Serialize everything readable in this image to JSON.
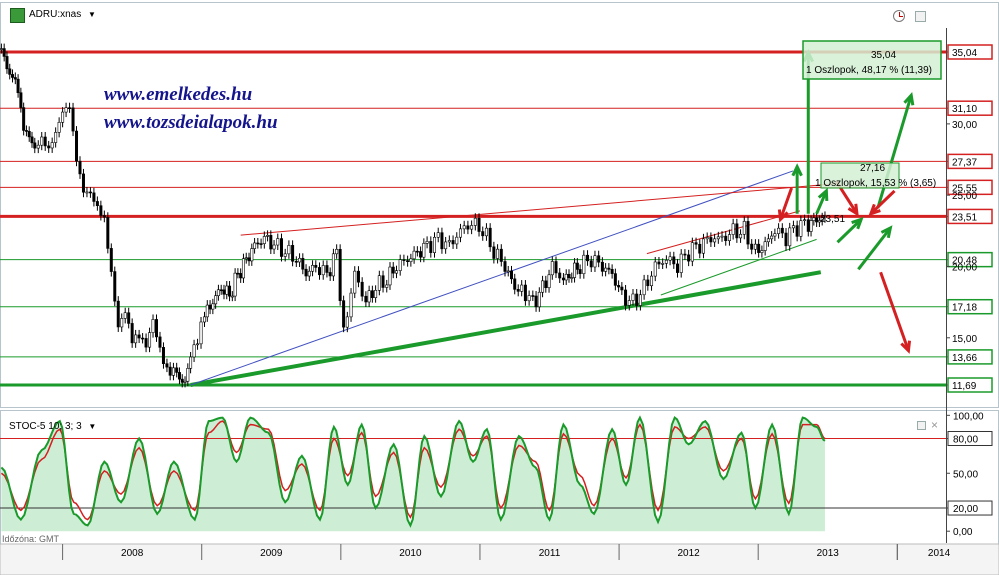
{
  "header": {
    "symbol_menu": "ADRU:xnas",
    "indicator_menu": "STOC-5 10; 3; 3",
    "timezone": "Időzóna: GMT"
  },
  "watermark": [
    "www.emelkedes.hu",
    "www.tozsdeialapok.hu"
  ],
  "colors": {
    "up": "#1a9a2a",
    "down": "#d42020",
    "price": "#000000",
    "blueline": "#4050c0",
    "stoch_fill": "#c8ecd0"
  },
  "chart_data": [
    {
      "type": "line",
      "title": "ADRU:xnas",
      "ylim": [
        11,
        37
      ],
      "xlim": [
        2007.55,
        2014.35
      ],
      "x_ticks": [
        "2008",
        "2009",
        "2010",
        "2011",
        "2012",
        "2013",
        "2014"
      ],
      "y_ticks": [
        "35,04",
        "31,10",
        "30,00",
        "27,37",
        "25,55",
        "25,00",
        "23,51",
        "20,48",
        "20,00",
        "17,18",
        "15,00",
        "13,66",
        "11,69"
      ],
      "series": [
        {
          "x": [
            2007.56,
            2007.62,
            2007.68,
            2007.72,
            2007.76,
            2007.8,
            2007.85,
            2007.9,
            2007.95,
            2008.0,
            2008.05,
            2008.1,
            2008.15,
            2008.2,
            2008.25,
            2008.3,
            2008.35,
            2008.4,
            2008.45,
            2008.5,
            2008.55,
            2008.6,
            2008.65,
            2008.7,
            2008.75,
            2008.82,
            2008.88,
            2008.92,
            2008.97,
            2009.02,
            2009.08,
            2009.14,
            2009.2,
            2009.26,
            2009.32,
            2009.38,
            2009.45,
            2009.52,
            2009.6,
            2009.68,
            2009.75,
            2009.82,
            2009.9,
            2009.97,
            2010.02,
            2010.1,
            2010.18,
            2010.25,
            2010.33,
            2010.4,
            2010.48,
            2010.55,
            2010.62,
            2010.7,
            2010.78,
            2010.86,
            2010.94,
            2011.02,
            2011.1,
            2011.18,
            2011.25,
            2011.3,
            2011.38,
            2011.45,
            2011.52,
            2011.6,
            2011.66,
            2011.72,
            2011.8,
            2011.88,
            2011.95,
            2012.02,
            2012.1,
            2012.18,
            2012.26,
            2012.34,
            2012.42,
            2012.5,
            2012.58,
            2012.66,
            2012.74,
            2012.82,
            2012.9,
            2012.98,
            2013.05,
            2013.12,
            2013.2,
            2013.28,
            2013.36,
            2013.42,
            2013.48
          ],
          "values": [
            35.0,
            33.5,
            32.5,
            30.0,
            29.5,
            28.5,
            29.0,
            28.0,
            29.0,
            30.5,
            31.0,
            27.5,
            25.5,
            25.5,
            24.5,
            23.5,
            19.5,
            15.5,
            16.5,
            14.5,
            15.0,
            14.5,
            16.5,
            14.5,
            13.0,
            12.5,
            11.8,
            13.5,
            14.5,
            16.5,
            17.5,
            18.5,
            18.0,
            19.5,
            20.5,
            21.5,
            22.0,
            21.5,
            21.0,
            20.5,
            19.5,
            20.0,
            19.5,
            21.0,
            15.5,
            19.5,
            17.5,
            18.5,
            19.0,
            20.0,
            20.5,
            21.0,
            21.5,
            22.0,
            21.5,
            22.5,
            23.0,
            22.5,
            21.0,
            20.0,
            18.5,
            18.5,
            17.5,
            18.5,
            20.0,
            19.0,
            19.5,
            20.0,
            20.5,
            20.0,
            19.5,
            18.0,
            17.5,
            18.5,
            20.0,
            20.5,
            20.0,
            21.0,
            21.5,
            22.0,
            22.0,
            22.5,
            22.5,
            21.0,
            21.5,
            22.5,
            22.0,
            22.8,
            23.0,
            23.3,
            23.51
          ]
        }
      ],
      "horizontal_levels": [
        {
          "value": 35.04,
          "color": "red",
          "weight": "thick"
        },
        {
          "value": 31.1,
          "color": "red",
          "weight": "thin"
        },
        {
          "value": 27.37,
          "color": "red",
          "weight": "thin"
        },
        {
          "value": 25.55,
          "color": "red",
          "weight": "thin"
        },
        {
          "value": 23.51,
          "color": "red",
          "weight": "thick"
        },
        {
          "value": 20.48,
          "color": "green",
          "weight": "thin"
        },
        {
          "value": 17.18,
          "color": "green",
          "weight": "thin"
        },
        {
          "value": 13.66,
          "color": "green",
          "weight": "thin"
        },
        {
          "value": 11.69,
          "color": "green",
          "weight": "thick"
        }
      ],
      "trendlines": [
        {
          "color": "green",
          "weight": "thick",
          "from": [
            2008.92,
            11.69
          ],
          "to": [
            2013.45,
            19.6
          ]
        },
        {
          "color": "green",
          "weight": "thin",
          "from": [
            2012.3,
            18.0
          ],
          "to": [
            2013.42,
            21.9
          ]
        },
        {
          "color": "blue",
          "weight": "thin",
          "from": [
            2008.92,
            11.69
          ],
          "to": [
            2013.25,
            26.7
          ]
        },
        {
          "color": "red",
          "weight": "thin",
          "from": [
            2009.28,
            22.2
          ],
          "to": [
            2013.55,
            25.8
          ]
        },
        {
          "color": "red",
          "weight": "thin",
          "from": [
            2012.2,
            20.9
          ],
          "to": [
            2013.3,
            23.9
          ]
        }
      ],
      "annotations": [
        {
          "label": "35,04",
          "text": "1 Oszlopok, 48,17 % (11,39)"
        },
        {
          "label": "27,16",
          "text": "1 Oszlopok, 15,53 % (3,65)"
        },
        {
          "label": "23,51"
        }
      ],
      "arrows": [
        {
          "color": "green",
          "from": [
            2013.36,
            23.7
          ],
          "to": [
            2013.36,
            35.0
          ]
        },
        {
          "color": "green",
          "from": [
            2013.28,
            23.7
          ],
          "to": [
            2013.28,
            27.0
          ]
        },
        {
          "color": "green",
          "from": [
            2013.42,
            23.7
          ],
          "to": [
            2013.49,
            25.3
          ]
        },
        {
          "color": "green",
          "from": [
            2013.57,
            21.7
          ],
          "to": [
            2013.74,
            23.3
          ]
        },
        {
          "color": "green",
          "from": [
            2013.86,
            24.1
          ],
          "to": [
            2014.1,
            32.0
          ]
        },
        {
          "color": "green",
          "from": [
            2013.72,
            19.8
          ],
          "to": [
            2013.95,
            22.7
          ]
        },
        {
          "color": "red",
          "from": [
            2013.24,
            25.5
          ],
          "to": [
            2013.16,
            23.3
          ]
        },
        {
          "color": "red",
          "from": [
            2013.56,
            26.0
          ],
          "to": [
            2013.71,
            23.7
          ]
        },
        {
          "color": "red",
          "from": [
            2013.98,
            25.3
          ],
          "to": [
            2013.81,
            23.7
          ]
        },
        {
          "color": "red",
          "from": [
            2013.88,
            19.6
          ],
          "to": [
            2014.08,
            14.1
          ]
        }
      ]
    },
    {
      "type": "line",
      "title": "STOC-5 10; 3; 3",
      "ylim": [
        -5,
        102
      ],
      "y_ticks": [
        "100,00",
        "80,00",
        "50,00",
        "20,00",
        "0,00"
      ],
      "levels": [
        80,
        20
      ],
      "series": [
        {
          "name": "%K",
          "x": [
            2007.56,
            2007.7,
            2007.85,
            2007.98,
            2008.08,
            2008.18,
            2008.3,
            2008.42,
            2008.55,
            2008.68,
            2008.8,
            2008.95,
            2009.05,
            2009.15,
            2009.25,
            2009.35,
            2009.48,
            2009.6,
            2009.72,
            2009.85,
            2009.95,
            2010.05,
            2010.15,
            2010.25,
            2010.38,
            2010.5,
            2010.6,
            2010.72,
            2010.85,
            2010.95,
            2011.05,
            2011.15,
            2011.28,
            2011.4,
            2011.5,
            2011.6,
            2011.72,
            2011.82,
            2011.95,
            2012.05,
            2012.15,
            2012.28,
            2012.4,
            2012.5,
            2012.62,
            2012.75,
            2012.88,
            2012.98,
            2013.1,
            2013.22,
            2013.32,
            2013.42,
            2013.48
          ],
          "values": [
            55,
            10,
            70,
            95,
            15,
            5,
            60,
            25,
            80,
            15,
            60,
            10,
            95,
            98,
            60,
            98,
            85,
            25,
            65,
            10,
            90,
            40,
            92,
            20,
            75,
            5,
            82,
            30,
            95,
            60,
            88,
            10,
            82,
            55,
            10,
            92,
            40,
            15,
            88,
            40,
            98,
            8,
            98,
            75,
            95,
            45,
            85,
            20,
            92,
            15,
            98,
            90,
            78
          ]
        },
        {
          "name": "%D",
          "x": [
            2007.56,
            2007.7,
            2007.85,
            2007.98,
            2008.08,
            2008.18,
            2008.3,
            2008.42,
            2008.55,
            2008.68,
            2008.8,
            2008.95,
            2009.05,
            2009.15,
            2009.25,
            2009.35,
            2009.48,
            2009.6,
            2009.72,
            2009.85,
            2009.95,
            2010.05,
            2010.15,
            2010.25,
            2010.38,
            2010.5,
            2010.6,
            2010.72,
            2010.85,
            2010.95,
            2011.05,
            2011.15,
            2011.28,
            2011.4,
            2011.5,
            2011.6,
            2011.72,
            2011.82,
            2011.95,
            2012.05,
            2012.15,
            2012.28,
            2012.4,
            2012.5,
            2012.62,
            2012.75,
            2012.88,
            2012.98,
            2013.1,
            2013.22,
            2013.32,
            2013.42,
            2013.48
          ],
          "values": [
            50,
            18,
            62,
            88,
            25,
            10,
            52,
            32,
            72,
            22,
            52,
            18,
            85,
            95,
            68,
            92,
            88,
            35,
            58,
            18,
            80,
            48,
            85,
            30,
            68,
            12,
            72,
            38,
            88,
            65,
            82,
            20,
            74,
            60,
            18,
            84,
            48,
            22,
            80,
            46,
            92,
            18,
            90,
            80,
            90,
            52,
            80,
            28,
            84,
            24,
            92,
            92,
            80
          ]
        }
      ]
    }
  ]
}
